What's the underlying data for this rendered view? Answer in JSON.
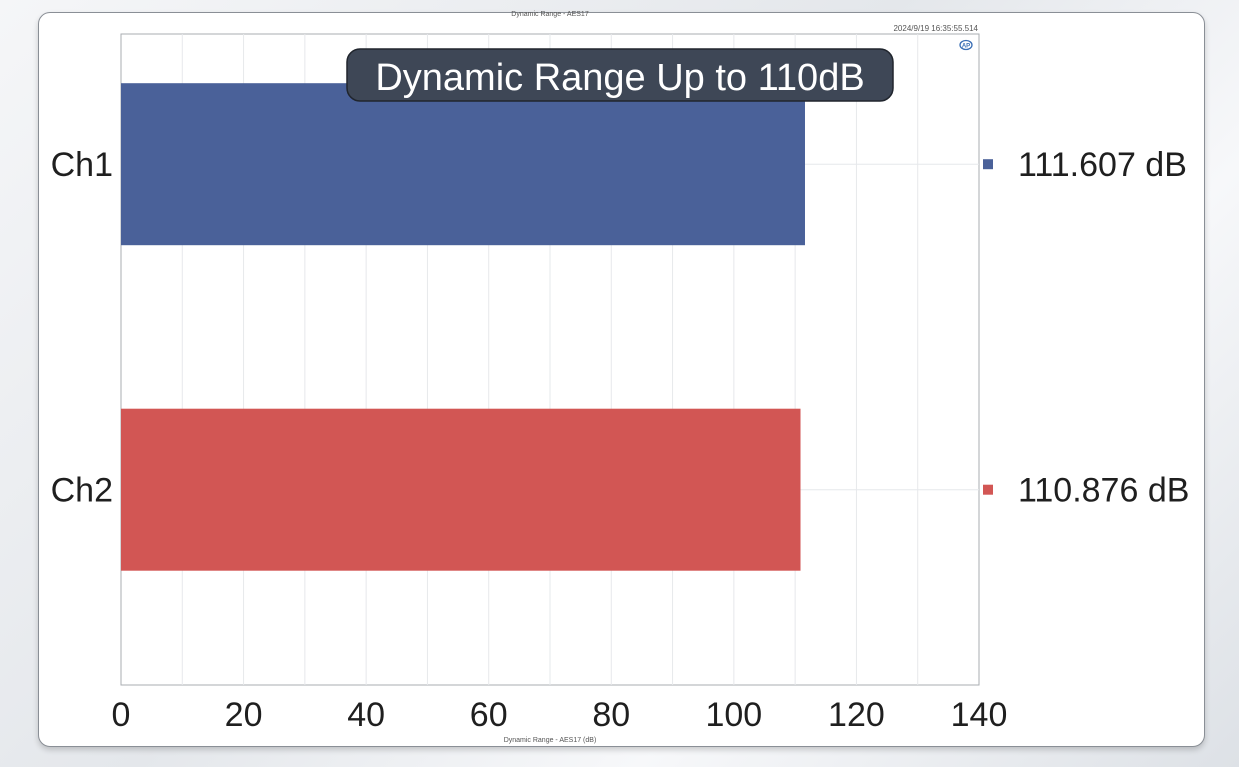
{
  "chart_data": {
    "type": "bar",
    "orientation": "horizontal",
    "title": "Dynamic Range - AES17",
    "banner": "Dynamic Range Up to 110dB",
    "timestamp": "2024/9/19 16:35:55.514",
    "xlabel": "Dynamic Range - AES17 (dB)",
    "ylabel": "",
    "xlim": [
      0,
      140
    ],
    "xticks": [
      0,
      20,
      40,
      60,
      80,
      100,
      120,
      140
    ],
    "grid": true,
    "categories": [
      "Ch1",
      "Ch2"
    ],
    "values": [
      111.607,
      110.876
    ],
    "value_labels": [
      "111.607 dB",
      "110.876 dB"
    ],
    "colors": [
      "#4a6199",
      "#d25654"
    ],
    "logo_icon": "ap-logo-icon"
  }
}
